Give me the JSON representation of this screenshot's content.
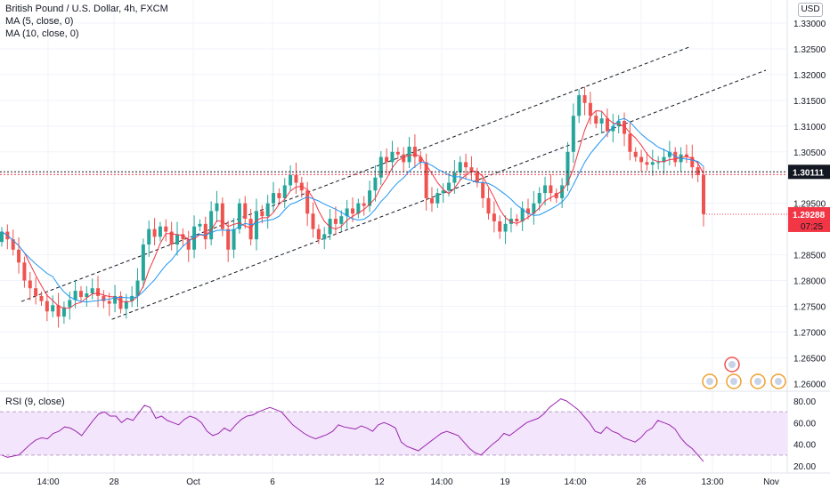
{
  "header": {
    "title": "British Pound / U.S. Dollar, 4h, FXCM",
    "ma1": "MA (5, close, 0)",
    "ma2": "MA (10, close, 0)",
    "rsi_label": "RSI (9, close)",
    "currency_button": "USD"
  },
  "colors": {
    "up": "#26a69a",
    "down": "#ef5350",
    "ma5": "#f23645",
    "ma10": "#2196f3",
    "rsi": "#9c27b0",
    "rsi_band": "#f3e5fb",
    "price_badge": "#131722",
    "last_badge": "#f23645"
  },
  "chart_data": [
    {
      "type": "candlestick",
      "title": "British Pound / U.S. Dollar, 4h, FXCM",
      "ylim": [
        1.2585,
        1.3345
      ],
      "y_ticks": [
        "1.26000",
        "1.26500",
        "1.27000",
        "1.27500",
        "1.28000",
        "1.28500",
        "1.29500",
        "1.30500",
        "1.31000",
        "1.31500",
        "1.32000",
        "1.32500",
        "1.33000"
      ],
      "x_ticks": [
        "14:00",
        "28",
        "Oct",
        "6",
        "12",
        "14:00",
        "19",
        "14:00",
        "26",
        "13:00",
        "Nov"
      ],
      "series": [
        {
          "name": "MA (5, close, 0)"
        },
        {
          "name": "MA (10, close, 0)"
        }
      ],
      "current_price": "1.30111",
      "last_price": "1.29288",
      "countdown": "07:25",
      "close": [
        1.2895,
        1.288,
        1.286,
        1.2835,
        1.28,
        1.2785,
        1.277,
        1.276,
        1.274,
        1.2752,
        1.273,
        1.2748,
        1.2762,
        1.278,
        1.2768,
        1.2775,
        1.2785,
        1.277,
        1.276,
        1.2755,
        1.277,
        1.2745,
        1.276,
        1.277,
        1.28,
        1.287,
        1.29,
        1.2885,
        1.2905,
        1.2895,
        1.287,
        1.289,
        1.288,
        1.286,
        1.2905,
        1.291,
        1.288,
        1.2935,
        1.295,
        1.29,
        1.286,
        1.29,
        1.295,
        1.292,
        1.288,
        1.2935,
        1.2925,
        1.295,
        1.297,
        1.296,
        1.2985,
        1.3005,
        1.299,
        1.2975,
        1.293,
        1.29,
        1.288,
        1.289,
        1.292,
        1.291,
        1.2925,
        1.294,
        1.293,
        1.295,
        1.2945,
        1.2975,
        1.3,
        1.304,
        1.303,
        1.305,
        1.3045,
        1.303,
        1.306,
        1.304,
        1.303,
        1.296,
        1.295,
        1.297,
        1.2975,
        1.299,
        1.301,
        1.303,
        1.302,
        1.301,
        1.299,
        1.296,
        1.293,
        1.2915,
        1.2895,
        1.291,
        1.292,
        1.2915,
        1.294,
        1.293,
        1.295,
        1.297,
        1.2985,
        1.297,
        1.296,
        1.2985,
        1.305,
        1.312,
        1.316,
        1.3145,
        1.312,
        1.3105,
        1.3115,
        1.309,
        1.31,
        1.311,
        1.3085,
        1.305,
        1.304,
        1.303,
        1.3025,
        1.303,
        1.303,
        1.304,
        1.305,
        1.303,
        1.3045,
        1.304,
        1.302,
        1.3005,
        1.2929
      ],
      "min_close": 1.273,
      "max_close": 1.316
    },
    {
      "type": "line",
      "title": "RSI (9, close)",
      "ylim": [
        15,
        90
      ],
      "y_ticks": [
        "20.00",
        "40.00",
        "60.00",
        "80.00"
      ],
      "band": [
        30,
        70
      ],
      "values": [
        30,
        28,
        29,
        30,
        35,
        40,
        44,
        46,
        45,
        50,
        52,
        56,
        55,
        52,
        48,
        55,
        62,
        68,
        70,
        66,
        66,
        60,
        64,
        62,
        69,
        76,
        74,
        64,
        66,
        62,
        60,
        58,
        63,
        66,
        64,
        60,
        52,
        48,
        50,
        55,
        52,
        58,
        63,
        66,
        67,
        70,
        72,
        74,
        72,
        70,
        64,
        58,
        54,
        50,
        47,
        45,
        47,
        49,
        52,
        58,
        56,
        55,
        54,
        57,
        55,
        52,
        58,
        60,
        58,
        55,
        42,
        38,
        36,
        34,
        38,
        42,
        46,
        50,
        52,
        50,
        48,
        42,
        36,
        32,
        30,
        35,
        40,
        44,
        50,
        48,
        52,
        56,
        60,
        62,
        64,
        68,
        74,
        78,
        82,
        80,
        76,
        72,
        66,
        60,
        52,
        50,
        56,
        52,
        50,
        46,
        44,
        42,
        46,
        52,
        55,
        62,
        60,
        58,
        54,
        46,
        40,
        36,
        30,
        24
      ]
    }
  ]
}
